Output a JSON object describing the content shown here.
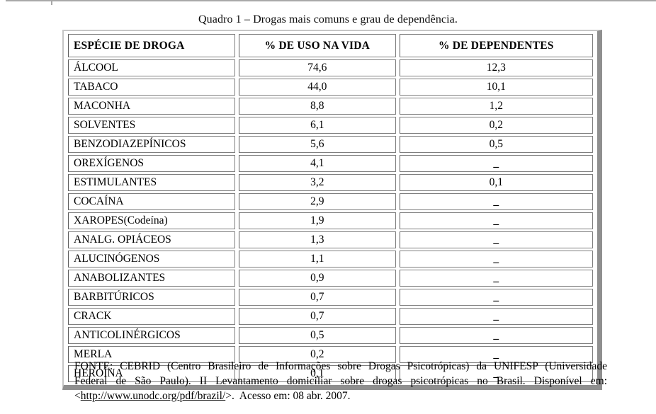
{
  "page": {
    "title": "Quadro 1 – Drogas mais comuns e grau de dependência."
  },
  "table": {
    "columns": [
      "ESPÉCIE DE DROGA",
      "% DE USO NA VIDA",
      "% DE DEPENDENTES"
    ],
    "no_value_placeholder": "_",
    "rows": [
      {
        "droga": "ÁLCOOL",
        "uso": "74,6",
        "dep": "12,3"
      },
      {
        "droga": "TABACO",
        "uso": "44,0",
        "dep": "10,1"
      },
      {
        "droga": "MACONHA",
        "uso": "8,8",
        "dep": "1,2"
      },
      {
        "droga": "SOLVENTES",
        "uso": "6,1",
        "dep": "0,2"
      },
      {
        "droga": "BENZODIAZEPÍNICOS",
        "uso": "5,6",
        "dep": "0,5"
      },
      {
        "droga": "OREXÍGENOS",
        "uso": "4,1",
        "dep": "_"
      },
      {
        "droga": "ESTIMULANTES",
        "uso": "3,2",
        "dep": "0,1"
      },
      {
        "droga": "COCAÍNA",
        "uso": "2,9",
        "dep": "_"
      },
      {
        "droga": "XAROPES(Codeína)",
        "uso": "1,9",
        "dep": "_"
      },
      {
        "droga": "ANALG. OPIÁCEOS",
        "uso": "1,3",
        "dep": "_"
      },
      {
        "droga": "ALUCINÓGENOS",
        "uso": "1,1",
        "dep": "_"
      },
      {
        "droga": "ANABOLIZANTES",
        "uso": "0,9",
        "dep": "_"
      },
      {
        "droga": "BARBITÚRICOS",
        "uso": "0,7",
        "dep": "_"
      },
      {
        "droga": "CRACK",
        "uso": "0,7",
        "dep": "_"
      },
      {
        "droga": "ANTICOLINÉRGICOS",
        "uso": "0,5",
        "dep": "_"
      },
      {
        "droga": "MERLA",
        "uso": "0,2",
        "dep": "_"
      },
      {
        "droga": "HEROÍNA",
        "uso": "0,1",
        "dep": "_"
      }
    ]
  },
  "footer": {
    "line1": "FONTE: CEBRID (Centro Brasileiro de Informações sobre Drogas Psicotrópicas) da UNIFESP (Universidade",
    "line2": "Federal de São Paulo). II Levantamento domiciliar sobre drogas psicotrópicas no Brasil. Disponível em:",
    "line3_prefix": "<",
    "line3_link": "http://www.unodc.org/pdf/brazil/",
    "line3_suffix": ">.  Acesso em: 08 abr. 2007."
  },
  "colors": {
    "frame_shadow": "#8f8f8f",
    "frame_light": "#c6c6c6",
    "cell_border": "#7f7f7f",
    "text": "#000000",
    "rule": "#a8a8a8"
  }
}
